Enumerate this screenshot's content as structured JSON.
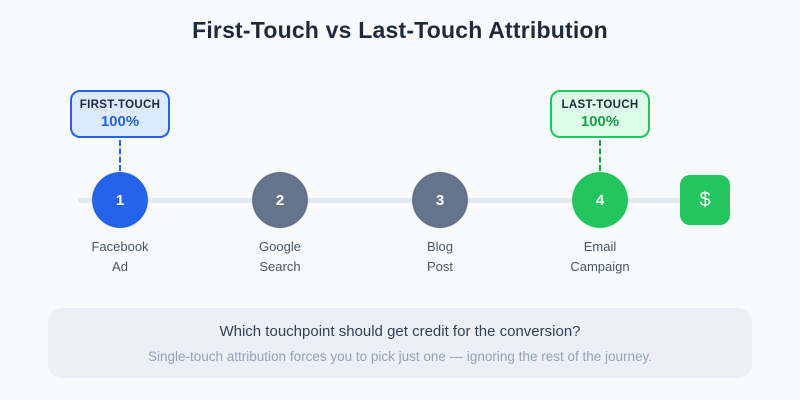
{
  "title": "First-Touch vs Last-Touch Attribution",
  "badges": {
    "first_touch": {
      "label": "FIRST-TOUCH",
      "value": "100%",
      "accent": "#2563eb",
      "background": "#dbeafe"
    },
    "last_touch": {
      "label": "LAST-TOUCH",
      "value": "100%",
      "accent": "#16a34a",
      "border": "#22c55e",
      "background": "#dcfce7"
    }
  },
  "timeline": {
    "steps": [
      {
        "number": "1",
        "label": "Facebook\nAd",
        "color": "#2563eb"
      },
      {
        "number": "2",
        "label": "Google\nSearch",
        "color": "#64748b"
      },
      {
        "number": "3",
        "label": "Blog\nPost",
        "color": "#64748b"
      },
      {
        "number": "4",
        "label": "Email\nCampaign",
        "color": "#22c55e"
      }
    ],
    "conversion": {
      "icon": "$",
      "color": "#22c55e"
    },
    "track_color": "#e2e8f0"
  },
  "footer": {
    "question": "Which touchpoint should get credit for the conversion?",
    "note": "Single-touch attribution forces you to pick just one — ignoring the rest of the journey."
  }
}
